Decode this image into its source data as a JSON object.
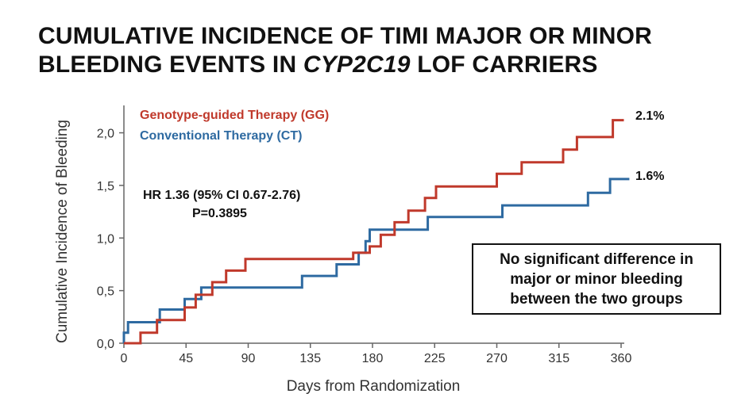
{
  "slide": {
    "title_line1": "CUMULATIVE INCIDENCE OF TIMI MAJOR OR MINOR",
    "title_line2_pre": "BLEEDING EVENTS IN ",
    "title_line2_gene": "CYP2C19",
    "title_line2_post": " LOF CARRIERS",
    "callout": "No significant difference in major or minor bleeding between the two groups"
  },
  "chart_data": {
    "type": "line",
    "step": true,
    "xlabel": "Days from Randomization",
    "ylabel": "Cumulative Incidence of Bleeding",
    "xlim": [
      0,
      360
    ],
    "ylim": [
      0,
      2.2
    ],
    "xticks": [
      0,
      45,
      90,
      135,
      180,
      225,
      270,
      315,
      360
    ],
    "xtick_labels": [
      "0",
      "45",
      "90",
      "135",
      "180",
      "225",
      "270",
      "315",
      "360"
    ],
    "yticks": [
      0,
      0.5,
      1.0,
      1.5,
      2.0
    ],
    "ytick_labels": [
      "0,0",
      "0,5",
      "1,0",
      "1,5",
      "2,0"
    ],
    "legend_position": "top-left",
    "annotations": {
      "hr": "HR 1.36 (95% CI 0.67-2.76)",
      "p": "P=0.3895"
    },
    "series": [
      {
        "name": "Genotype-guided Therapy (GG)",
        "color": "#c0392b",
        "end_label": "2.1%",
        "points": [
          [
            0,
            0
          ],
          [
            12,
            0
          ],
          [
            12,
            0.1
          ],
          [
            24,
            0.1
          ],
          [
            24,
            0.22
          ],
          [
            44,
            0.22
          ],
          [
            44,
            0.34
          ],
          [
            52,
            0.34
          ],
          [
            52,
            0.46
          ],
          [
            64,
            0.46
          ],
          [
            64,
            0.58
          ],
          [
            74,
            0.58
          ],
          [
            74,
            0.69
          ],
          [
            88,
            0.69
          ],
          [
            88,
            0.8
          ],
          [
            166,
            0.8
          ],
          [
            166,
            0.86
          ],
          [
            178,
            0.86
          ],
          [
            178,
            0.92
          ],
          [
            186,
            0.92
          ],
          [
            186,
            1.03
          ],
          [
            196,
            1.03
          ],
          [
            196,
            1.15
          ],
          [
            206,
            1.15
          ],
          [
            206,
            1.26
          ],
          [
            218,
            1.26
          ],
          [
            218,
            1.38
          ],
          [
            226,
            1.38
          ],
          [
            226,
            1.49
          ],
          [
            270,
            1.49
          ],
          [
            270,
            1.61
          ],
          [
            288,
            1.61
          ],
          [
            288,
            1.72
          ],
          [
            318,
            1.72
          ],
          [
            318,
            1.84
          ],
          [
            328,
            1.84
          ],
          [
            328,
            1.96
          ],
          [
            354,
            1.96
          ],
          [
            354,
            2.12
          ],
          [
            362,
            2.12
          ]
        ]
      },
      {
        "name": "Conventional Therapy (CT)",
        "color": "#2e6aa1",
        "end_label": "1.6%",
        "points": [
          [
            0,
            0
          ],
          [
            0,
            0.1
          ],
          [
            3,
            0.1
          ],
          [
            3,
            0.2
          ],
          [
            26,
            0.2
          ],
          [
            26,
            0.32
          ],
          [
            44,
            0.32
          ],
          [
            44,
            0.42
          ],
          [
            56,
            0.42
          ],
          [
            56,
            0.53
          ],
          [
            129,
            0.53
          ],
          [
            129,
            0.64
          ],
          [
            154,
            0.64
          ],
          [
            154,
            0.75
          ],
          [
            170,
            0.75
          ],
          [
            170,
            0.86
          ],
          [
            175,
            0.86
          ],
          [
            175,
            0.97
          ],
          [
            178,
            0.97
          ],
          [
            178,
            1.08
          ],
          [
            220,
            1.08
          ],
          [
            220,
            1.2
          ],
          [
            274,
            1.2
          ],
          [
            274,
            1.31
          ],
          [
            336,
            1.31
          ],
          [
            336,
            1.43
          ],
          [
            352,
            1.43
          ],
          [
            352,
            1.56
          ],
          [
            366,
            1.56
          ]
        ]
      }
    ]
  }
}
